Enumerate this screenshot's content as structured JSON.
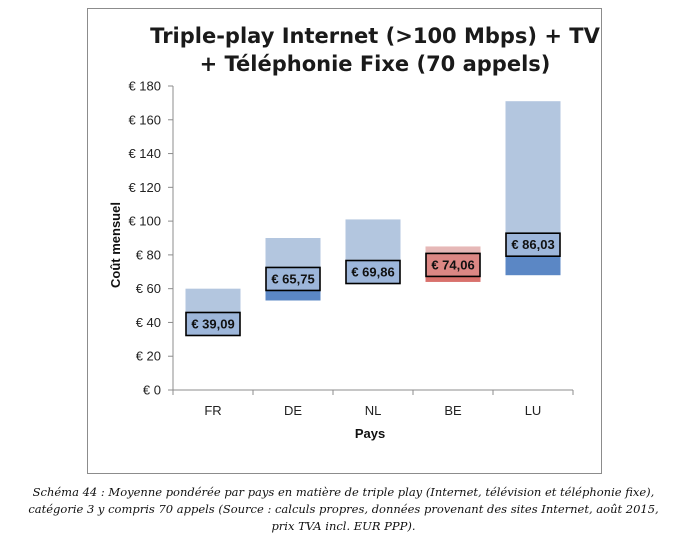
{
  "chart_data": {
    "type": "bar",
    "title_lines": [
      "Triple-play Internet (>100 Mbps) + TV",
      "+ Téléphonie Fixe (70 appels)"
    ],
    "xlabel": "Pays",
    "ylabel": "Coût mensuel",
    "categories": [
      "FR",
      "DE",
      "NL",
      "BE",
      "LU"
    ],
    "ylim": [
      0,
      180
    ],
    "yticks": [
      0,
      20,
      40,
      60,
      80,
      100,
      120,
      140,
      160,
      180
    ],
    "ytick_labels": [
      "€ 0",
      "€ 20",
      "€ 40",
      "€ 60",
      "€ 80",
      "€ 100",
      "€ 120",
      "€ 140",
      "€ 160",
      "€ 180"
    ],
    "ranges": [
      {
        "category": "FR",
        "min": 35,
        "max": 60
      },
      {
        "category": "DE",
        "min": 53,
        "max": 90
      },
      {
        "category": "NL",
        "min": 63,
        "max": 101
      },
      {
        "category": "BE",
        "min": 64,
        "max": 85
      },
      {
        "category": "LU",
        "min": 68,
        "max": 171
      }
    ],
    "averages": [
      39.09,
      65.75,
      69.86,
      74.06,
      86.03
    ],
    "average_labels": [
      "€ 39,09",
      "€ 65,75",
      "€ 69,86",
      "€ 74,06",
      "€ 86,03"
    ],
    "colors": {
      "range_default": "#b3c6df",
      "below_avg_default": "#5b87c5",
      "range_highlight": "#e6b8b7",
      "below_avg_highlight": "#d9716c",
      "label_box_default": "#9db6da",
      "label_box_highlight": "#dc8784"
    },
    "highlight_category": "BE",
    "grid": false,
    "legend": "none"
  },
  "caption_lines": [
    "Schéma 44 : Moyenne pondérée par pays en matière de triple play (Internet, télévision et téléphonie fixe),",
    "catégorie 3 y compris 70 appels (Source : calculs propres, données provenant des sites Internet, août 2015,",
    "prix TVA incl. EUR PPP)."
  ]
}
